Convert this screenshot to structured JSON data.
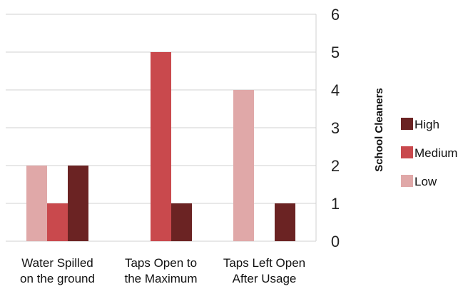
{
  "chart_data": {
    "type": "bar",
    "categories": [
      [
        "Water Spilled",
        "on the ground"
      ],
      [
        "Taps Open to",
        "the Maximum"
      ],
      [
        "Taps Left Open",
        "After Usage"
      ]
    ],
    "series": [
      {
        "name": "Low",
        "color": "#e0a8a8",
        "values": [
          2,
          0,
          4
        ]
      },
      {
        "name": "Medium",
        "color": "#c9494d",
        "values": [
          1,
          5,
          0
        ]
      },
      {
        "name": "High",
        "color": "#6b2323",
        "values": [
          2,
          1,
          1
        ]
      }
    ],
    "ylabel": "School Cleaners",
    "ylim": [
      0,
      6
    ],
    "yticks": [
      0,
      1,
      2,
      3,
      4,
      5,
      6
    ],
    "y_axis_side": "right",
    "grid": "horizontal",
    "legend_placement": "right",
    "legend_order": [
      "High",
      "Medium",
      "Low"
    ],
    "grid_color": "#d0d0d0"
  }
}
